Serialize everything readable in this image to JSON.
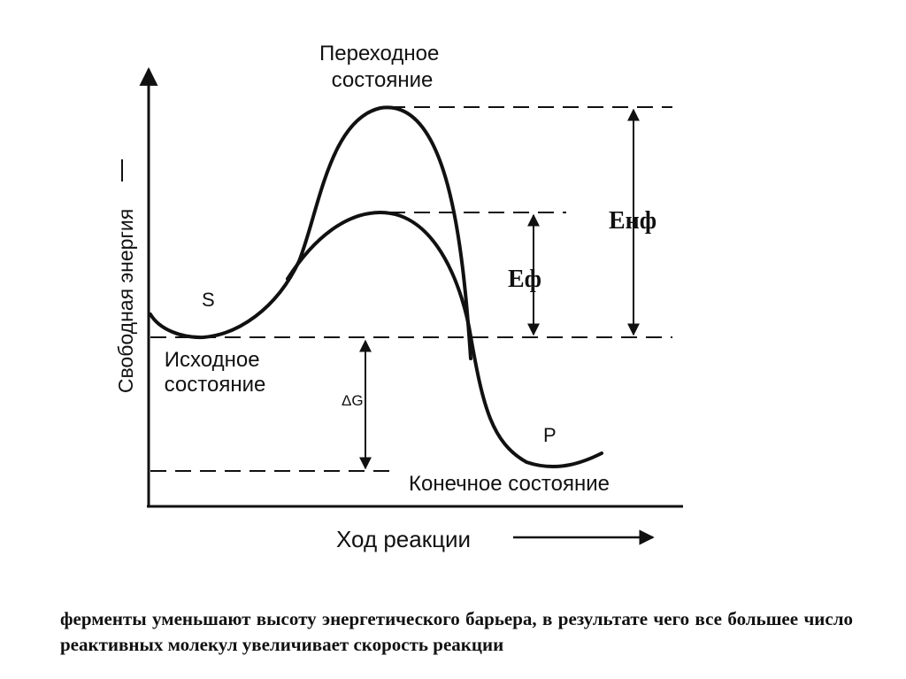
{
  "diagram": {
    "y_axis_label": "Свободная энергия",
    "x_axis_label": "Ход реакции",
    "transition_state_label": [
      "Переходное",
      "состояние"
    ],
    "initial_state_label": [
      "Исходное",
      "состояние"
    ],
    "final_state_label": "Конечное состояние",
    "substrate_label": "S",
    "product_label": "P",
    "e_nf_label": "Енф",
    "e_f_label": "Еф",
    "delta_g_label": "ΔG"
  },
  "caption": "ферменты уменьшают высоту энергетического барьера, в результате чего все большее число реактивных молекул увеличивает скорость реакции"
}
